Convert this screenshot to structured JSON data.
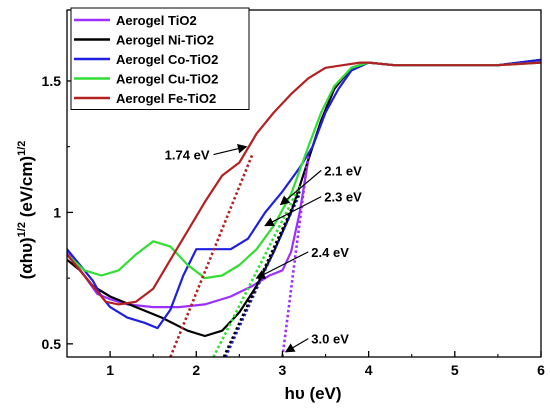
{
  "chart_data": {
    "type": "line",
    "title": "",
    "xlabel": "hυ (eV)",
    "ylabel": "(αhυ)^1/2 (eV/cm)^1/2",
    "xlim": [
      0.5,
      6
    ],
    "ylim": [
      0.45,
      1.77
    ],
    "xticks": [
      "1",
      "2",
      "3",
      "4",
      "5",
      "6"
    ],
    "yticks": [
      "0.5",
      "1",
      "1.5"
    ],
    "grid": false,
    "legend_position": "top-left",
    "series": [
      {
        "name": "Aerogel TiO2",
        "color": "#9b30ff",
        "x": [
          0.5,
          0.7,
          0.85,
          1.0,
          1.2,
          1.5,
          1.8,
          2.1,
          2.4,
          2.65,
          2.85,
          3.0,
          3.1,
          3.2,
          3.3,
          3.45,
          3.6,
          3.8,
          4.0,
          4.3,
          4.7,
          5.0,
          5.5,
          6.0
        ],
        "y": [
          0.85,
          0.76,
          0.69,
          0.67,
          0.65,
          0.64,
          0.64,
          0.65,
          0.68,
          0.72,
          0.76,
          0.78,
          0.85,
          1.0,
          1.2,
          1.35,
          1.47,
          1.55,
          1.57,
          1.56,
          1.56,
          1.56,
          1.56,
          1.58
        ]
      },
      {
        "name": "Aerogel Ni-TiO2",
        "color": "#000000",
        "x": [
          0.5,
          0.65,
          0.8,
          1.0,
          1.3,
          1.6,
          1.9,
          2.1,
          2.3,
          2.5,
          2.7,
          2.9,
          3.1,
          3.3,
          3.45,
          3.6,
          3.8,
          4.0,
          4.3,
          4.7,
          5.0,
          5.5,
          6.0
        ],
        "y": [
          0.82,
          0.78,
          0.72,
          0.68,
          0.64,
          0.6,
          0.55,
          0.53,
          0.55,
          0.62,
          0.72,
          0.85,
          1.0,
          1.2,
          1.35,
          1.47,
          1.55,
          1.57,
          1.56,
          1.56,
          1.56,
          1.56,
          1.58
        ]
      },
      {
        "name": "Aerogel Co-TiO2",
        "color": "#1f1fdf",
        "x": [
          0.5,
          0.65,
          0.8,
          0.9,
          1.0,
          1.2,
          1.4,
          1.55,
          1.7,
          1.85,
          2.0,
          2.2,
          2.4,
          2.6,
          2.8,
          3.0,
          3.2,
          3.35,
          3.5,
          3.65,
          3.8,
          4.0,
          4.3,
          4.7,
          5.0,
          5.5,
          6.0
        ],
        "y": [
          0.86,
          0.8,
          0.74,
          0.68,
          0.64,
          0.6,
          0.58,
          0.56,
          0.63,
          0.76,
          0.86,
          0.86,
          0.86,
          0.9,
          1.0,
          1.08,
          1.17,
          1.25,
          1.38,
          1.47,
          1.54,
          1.57,
          1.56,
          1.56,
          1.56,
          1.56,
          1.58
        ]
      },
      {
        "name": "Aerogel Cu-TiO2",
        "color": "#33dd33",
        "x": [
          0.5,
          0.7,
          0.9,
          1.1,
          1.3,
          1.5,
          1.7,
          1.9,
          2.1,
          2.3,
          2.5,
          2.7,
          2.9,
          3.1,
          3.3,
          3.45,
          3.6,
          3.8,
          4.0,
          4.3,
          4.7,
          5.0,
          5.5,
          6.0
        ],
        "y": [
          0.84,
          0.78,
          0.76,
          0.78,
          0.84,
          0.89,
          0.87,
          0.8,
          0.75,
          0.76,
          0.8,
          0.86,
          0.95,
          1.07,
          1.25,
          1.38,
          1.48,
          1.55,
          1.57,
          1.56,
          1.56,
          1.56,
          1.56,
          1.57
        ]
      },
      {
        "name": "Aerogel Fe-TiO2",
        "color": "#b22222",
        "x": [
          0.5,
          0.6,
          0.75,
          0.85,
          0.95,
          1.1,
          1.3,
          1.5,
          1.7,
          1.9,
          2.1,
          2.3,
          2.5,
          2.7,
          2.9,
          3.1,
          3.3,
          3.5,
          3.7,
          3.9,
          4.0,
          4.3,
          4.7,
          5.0,
          5.5,
          6.0
        ],
        "y": [
          0.84,
          0.8,
          0.74,
          0.7,
          0.66,
          0.65,
          0.66,
          0.71,
          0.82,
          0.93,
          1.04,
          1.14,
          1.19,
          1.3,
          1.38,
          1.45,
          1.51,
          1.55,
          1.56,
          1.57,
          1.57,
          1.56,
          1.56,
          1.56,
          1.56,
          1.57
        ]
      }
    ],
    "tangents": [
      {
        "color": "#b22222",
        "x": [
          1.7,
          2.65
        ],
        "y": [
          0.45,
          1.22
        ]
      },
      {
        "color": "#1f1fdf",
        "x": [
          2.34,
          3.2
        ],
        "y": [
          0.45,
          1.07
        ]
      },
      {
        "color": "#000000",
        "x": [
          2.32,
          3.2
        ],
        "y": [
          0.45,
          1.08
        ]
      },
      {
        "color": "#33dd33",
        "x": [
          2.2,
          3.2
        ],
        "y": [
          0.45,
          1.1
        ]
      },
      {
        "color": "#9b30ff",
        "x": [
          3.0,
          3.3
        ],
        "y": [
          0.45,
          1.22
        ]
      }
    ],
    "annotations": [
      {
        "text": "1.74 eV",
        "arrow_from": [
          2.58,
          1.25
        ],
        "arrow_to": [
          2.2,
          1.22
        ]
      },
      {
        "text": "2.1 eV",
        "arrow_from": [
          2.98,
          1.03
        ],
        "arrow_to": [
          3.45,
          1.16
        ]
      },
      {
        "text": "2.3 eV",
        "arrow_from": [
          2.8,
          0.95
        ],
        "arrow_to": [
          3.45,
          1.06
        ]
      },
      {
        "text": "2.4 eV",
        "arrow_from": [
          2.7,
          0.75
        ],
        "arrow_to": [
          3.3,
          0.85
        ]
      },
      {
        "text": "3.0 eV",
        "arrow_from": [
          3.04,
          0.47
        ],
        "arrow_to": [
          3.3,
          0.52
        ]
      }
    ]
  }
}
